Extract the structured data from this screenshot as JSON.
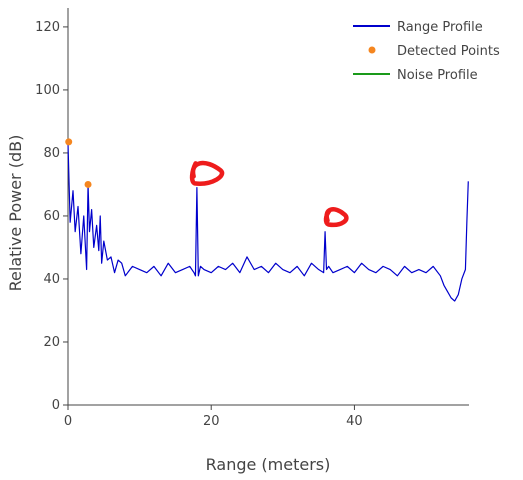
{
  "chart_data": {
    "type": "line",
    "xlabel": "Range (meters)",
    "ylabel": "Relative Power (dB)",
    "xlim": [
      0,
      56
    ],
    "ylim": [
      0,
      126
    ],
    "x_ticks": [
      0,
      20,
      40
    ],
    "y_ticks": [
      0,
      20,
      40,
      60,
      80,
      100,
      120
    ],
    "grid": false,
    "legend_position": "top-right",
    "colors": {
      "range_profile": "#0000cc",
      "detected_points": "#f5861f",
      "noise_profile": "#1a9a1a",
      "annotation": "#ee1c1c"
    },
    "series": [
      {
        "name": "Range Profile",
        "kind": "line",
        "x": [
          0,
          0.3,
          0.7,
          1.0,
          1.4,
          1.8,
          2.2,
          2.6,
          2.8,
          3.0,
          3.3,
          3.6,
          4.0,
          4.3,
          4.5,
          4.7,
          5.0,
          5.5,
          6.0,
          6.5,
          7.0,
          7.5,
          8.0,
          9.0,
          10.0,
          11.0,
          12.0,
          13.0,
          14.0,
          15.0,
          16.0,
          17.0,
          17.6,
          17.8,
          18.0,
          18.2,
          18.5,
          19.0,
          20.0,
          21.0,
          22.0,
          23.0,
          24.0,
          25.0,
          26.0,
          27.0,
          28.0,
          29.0,
          30.0,
          31.0,
          32.0,
          33.0,
          34.0,
          35.0,
          35.7,
          35.9,
          36.1,
          36.4,
          37.0,
          38.0,
          39.0,
          40.0,
          41.0,
          42.0,
          43.0,
          44.0,
          45.0,
          46.0,
          47.0,
          48.0,
          49.0,
          50.0,
          51.0,
          52.0,
          52.5,
          53.0,
          53.5,
          54.0,
          54.5,
          55.0,
          55.5,
          55.7,
          55.9
        ],
        "y": [
          83,
          58,
          68,
          55,
          63,
          48,
          60,
          43,
          70,
          55,
          62,
          50,
          57,
          49,
          60,
          45,
          52,
          46,
          47,
          42,
          46,
          45,
          41,
          44,
          43,
          42,
          44,
          41,
          45,
          42,
          43,
          44,
          42,
          41,
          69,
          41,
          44,
          43,
          42,
          44,
          43,
          45,
          42,
          47,
          43,
          44,
          42,
          45,
          43,
          42,
          44,
          41,
          45,
          43,
          42,
          55,
          43,
          44,
          42,
          43,
          44,
          42,
          45,
          43,
          42,
          44,
          43,
          41,
          44,
          42,
          43,
          42,
          44,
          41,
          38,
          36,
          34,
          33,
          35,
          40,
          43,
          58,
          71
        ]
      },
      {
        "name": "Detected Points",
        "kind": "scatter",
        "x": [
          0.1,
          2.8
        ],
        "y": [
          83.5,
          70
        ]
      },
      {
        "name": "Noise Profile",
        "kind": "line",
        "x": [],
        "y": []
      }
    ],
    "annotations": [
      {
        "type": "hand-drawn-circle",
        "x": 19.5,
        "y": 73.5
      },
      {
        "type": "hand-drawn-circle",
        "x": 37.5,
        "y": 59.5
      }
    ]
  }
}
